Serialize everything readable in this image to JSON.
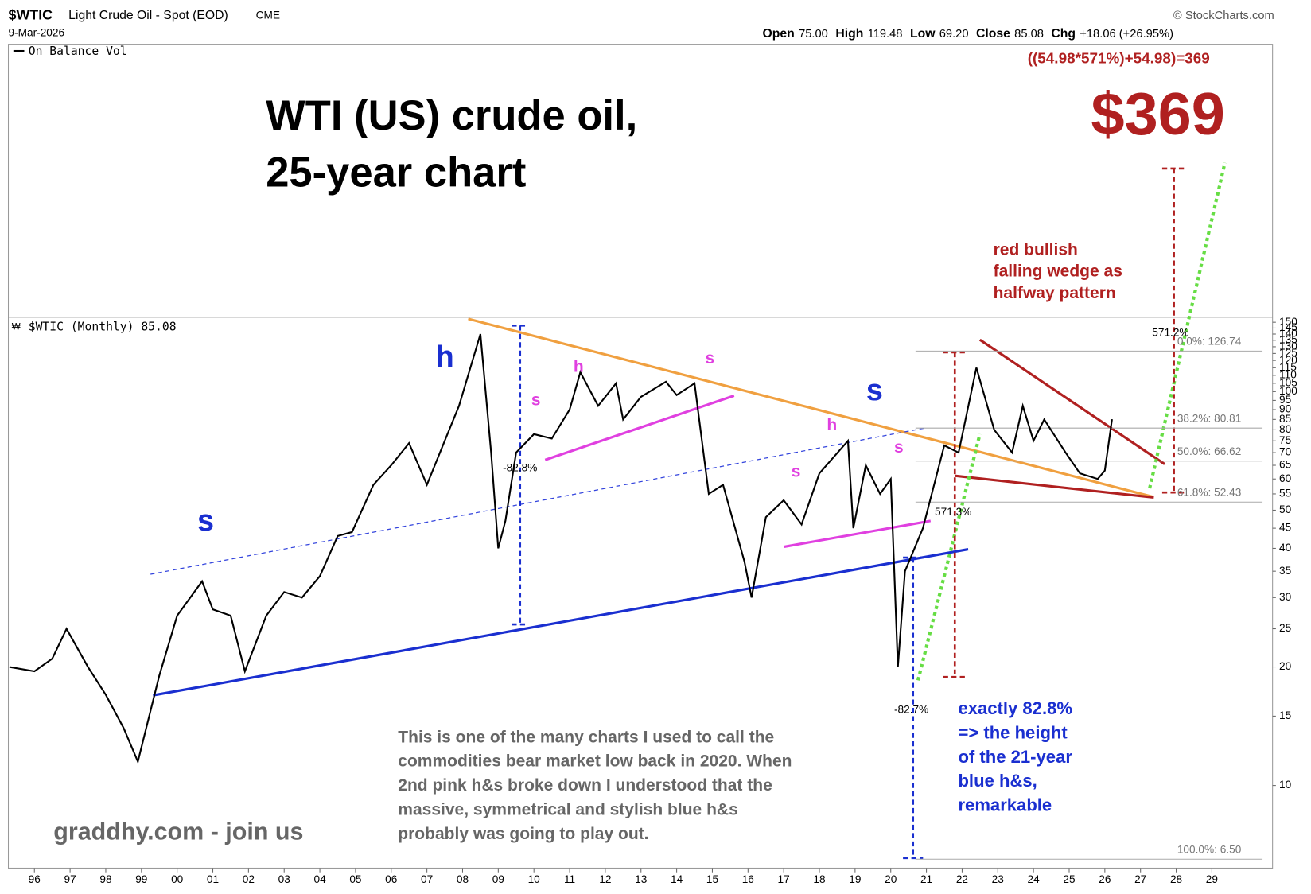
{
  "chart_data": {
    "type": "line",
    "header": {
      "symbol": "$WTIC",
      "name": "Light Crude Oil - Spot (EOD)",
      "exchange": "CME",
      "date": "9-Mar-2026",
      "source": "© StockCharts.com",
      "ohlc": [
        {
          "label": "Open",
          "value": "75.00"
        },
        {
          "label": "High",
          "value": "119.48"
        },
        {
          "label": "Low",
          "value": "69.20"
        },
        {
          "label": "Close",
          "value": "85.08"
        },
        {
          "label": "Chg",
          "value": "+18.06 (+26.95%)"
        }
      ]
    },
    "indicator_legend": "On Balance Vol",
    "series_legend": "$WTIC (Monthly) 85.08",
    "title": [
      "WTI (US) crude oil,",
      "25-year chart"
    ],
    "series": [
      {
        "name": "$WTIC",
        "color": "#000000",
        "x": [
          1995.3,
          1996.0,
          1996.5,
          1996.9,
          1997.5,
          1998.0,
          1998.5,
          1998.9,
          1999.5,
          2000.0,
          2000.7,
          2001.0,
          2001.5,
          2001.9,
          2002.5,
          2003.0,
          2003.5,
          2004.0,
          2004.5,
          2004.9,
          2005.5,
          2006.0,
          2006.5,
          2007.0,
          2007.5,
          2007.9,
          2008.5,
          2008.8,
          2009.0,
          2009.2,
          2009.5,
          2010.0,
          2010.5,
          2011.0,
          2011.3,
          2011.8,
          2012.3,
          2012.5,
          2013.0,
          2013.7,
          2014.0,
          2014.5,
          2014.9,
          2015.3,
          2015.9,
          2016.1,
          2016.5,
          2017.0,
          2017.5,
          2018.0,
          2018.8,
          2018.95,
          2019.3,
          2019.7,
          2020.0,
          2020.2,
          2020.4,
          2020.9,
          2021.5,
          2021.9,
          2022.4,
          2022.9,
          2023.4,
          2023.7,
          2024.0,
          2024.3,
          2024.9,
          2025.3,
          2025.8,
          2026.0,
          2026.2
        ],
        "values": [
          20,
          19.5,
          21,
          25,
          20,
          17,
          14,
          11.5,
          19,
          27,
          33,
          28,
          27,
          19.5,
          27,
          31,
          30,
          34,
          43,
          44,
          58,
          65,
          74,
          58,
          75,
          92,
          140,
          70,
          40,
          47,
          70,
          78,
          76,
          90,
          112,
          92,
          105,
          85,
          97,
          106,
          98,
          105,
          55,
          58,
          37,
          30,
          48,
          53,
          46,
          62,
          75,
          45,
          65,
          55,
          60,
          20,
          35,
          45,
          73,
          70,
          115,
          80,
          70,
          92,
          75,
          85,
          70,
          62,
          60,
          63,
          85.08
        ]
      }
    ],
    "log_scale": true,
    "ylim": [
      6.17,
      153
    ],
    "yticks": [
      10,
      15,
      20,
      25,
      30,
      35,
      40,
      45,
      50,
      55,
      60,
      65,
      70,
      75,
      80,
      85,
      90,
      95,
      100,
      105,
      110,
      115,
      120,
      125,
      130,
      135,
      140,
      145,
      150
    ],
    "xlim": [
      1995.27,
      2030.7
    ],
    "xticks": [
      {
        "value": 1996,
        "label": "96"
      },
      {
        "value": 1997,
        "label": "97"
      },
      {
        "value": 1998,
        "label": "98"
      },
      {
        "value": 1999,
        "label": "99"
      },
      {
        "value": 2000,
        "label": "00"
      },
      {
        "value": 2001,
        "label": "01"
      },
      {
        "value": 2002,
        "label": "02"
      },
      {
        "value": 2003,
        "label": "03"
      },
      {
        "value": 2004,
        "label": "04"
      },
      {
        "value": 2005,
        "label": "05"
      },
      {
        "value": 2006,
        "label": "06"
      },
      {
        "value": 2007,
        "label": "07"
      },
      {
        "value": 2008,
        "label": "08"
      },
      {
        "value": 2009,
        "label": "09"
      },
      {
        "value": 2010,
        "label": "10"
      },
      {
        "value": 2011,
        "label": "11"
      },
      {
        "value": 2012,
        "label": "12"
      },
      {
        "value": 2013,
        "label": "13"
      },
      {
        "value": 2014,
        "label": "14"
      },
      {
        "value": 2015,
        "label": "15"
      },
      {
        "value": 2016,
        "label": "16"
      },
      {
        "value": 2017,
        "label": "17"
      },
      {
        "value": 2018,
        "label": "18"
      },
      {
        "value": 2019,
        "label": "19"
      },
      {
        "value": 2020,
        "label": "20"
      },
      {
        "value": 2021,
        "label": "21"
      },
      {
        "value": 2022,
        "label": "22"
      },
      {
        "value": 2023,
        "label": "23"
      },
      {
        "value": 2024,
        "label": "24"
      },
      {
        "value": 2025,
        "label": "25"
      },
      {
        "value": 2026,
        "label": "26"
      },
      {
        "value": 2027,
        "label": "27"
      },
      {
        "value": 2028,
        "label": "28"
      },
      {
        "value": 2029,
        "label": "29"
      }
    ],
    "fib_levels": [
      {
        "value": 126.74,
        "label": "0.0%: 126.74"
      },
      {
        "value": 80.81,
        "label": "38.2%: 80.81"
      },
      {
        "value": 66.62,
        "label": "50.0%: 66.62"
      },
      {
        "value": 52.43,
        "label": "61.8%: 52.43"
      },
      {
        "value": 6.5,
        "label": "100.0%: 6.50"
      }
    ],
    "annotations": [
      {
        "text": "((54.98*571%)+54.98)=369"
      },
      {
        "text": "$369"
      },
      {
        "text": "red bullish"
      },
      {
        "text": "falling wedge as"
      },
      {
        "text": "halfway pattern"
      },
      {
        "text": "-82.8%"
      },
      {
        "text": "571.3%"
      },
      {
        "text": "-82.7%"
      },
      {
        "text": "571.2%"
      },
      {
        "text": "exactly 82.8%"
      },
      {
        "text": "=> the height"
      },
      {
        "text": "of the 21-year"
      },
      {
        "text": "blue h&s,"
      },
      {
        "text": "remarkable"
      },
      {
        "text": "This is one of the many charts I used to call the"
      },
      {
        "text": "commodities bear market low back in 2020.  When"
      },
      {
        "text": "2nd pink h&s broke down I understood that the"
      },
      {
        "text": "massive, symmetrical and stylish blue h&s"
      },
      {
        "text": "probably was going to play out."
      },
      {
        "text": "graddhy.com - join us"
      },
      {
        "text": "s"
      },
      {
        "text": "h"
      },
      {
        "text": "s"
      },
      {
        "text": "s"
      },
      {
        "text": "h"
      },
      {
        "text": "s"
      },
      {
        "text": "s"
      },
      {
        "text": "h"
      },
      {
        "text": "s"
      }
    ]
  }
}
